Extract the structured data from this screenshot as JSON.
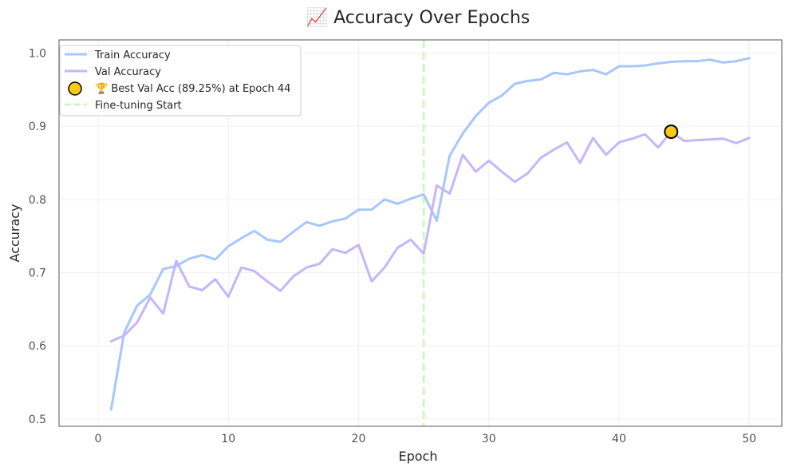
{
  "chart_data": {
    "type": "line",
    "title": "📈 Accuracy Over Epochs",
    "xlabel": "Epoch",
    "ylabel": "Accuracy",
    "xlim": [
      -3,
      52.5
    ],
    "ylim": [
      0.49,
      1.018
    ],
    "xticks": [
      0,
      10,
      20,
      30,
      40,
      50
    ],
    "yticks": [
      0.5,
      0.6,
      0.7,
      0.8,
      0.9,
      1.0
    ],
    "ytick_labels": [
      "0.5",
      "0.6",
      "0.7",
      "0.8",
      "0.9",
      "1.0"
    ],
    "grid": true,
    "legend_position": "top-left",
    "x": [
      1,
      2,
      3,
      4,
      5,
      6,
      7,
      8,
      9,
      10,
      11,
      12,
      13,
      14,
      15,
      16,
      17,
      18,
      19,
      20,
      21,
      22,
      23,
      24,
      25,
      26,
      27,
      28,
      29,
      30,
      31,
      32,
      33,
      34,
      35,
      36,
      37,
      38,
      39,
      40,
      41,
      42,
      43,
      44,
      45,
      46,
      47,
      48,
      49,
      50
    ],
    "series": [
      {
        "name": "Train Accuracy",
        "color": "#a7c7fa",
        "values": [
          0.513,
          0.618,
          0.655,
          0.67,
          0.705,
          0.709,
          0.719,
          0.724,
          0.718,
          0.736,
          0.747,
          0.757,
          0.745,
          0.742,
          0.756,
          0.769,
          0.764,
          0.77,
          0.774,
          0.786,
          0.786,
          0.8,
          0.794,
          0.801,
          0.807,
          0.771,
          0.86,
          0.89,
          0.914,
          0.932,
          0.942,
          0.958,
          0.962,
          0.964,
          0.973,
          0.971,
          0.975,
          0.977,
          0.971,
          0.982,
          0.982,
          0.983,
          0.986,
          0.988,
          0.989,
          0.989,
          0.991,
          0.987,
          0.989,
          0.993
        ]
      },
      {
        "name": "Val Accuracy",
        "color": "#c5b6fb",
        "values": [
          0.606,
          0.614,
          0.632,
          0.666,
          0.644,
          0.716,
          0.681,
          0.676,
          0.691,
          0.667,
          0.707,
          0.702,
          0.688,
          0.675,
          0.695,
          0.707,
          0.712,
          0.732,
          0.727,
          0.738,
          0.688,
          0.707,
          0.734,
          0.745,
          0.726,
          0.819,
          0.808,
          0.861,
          0.838,
          0.853,
          0.838,
          0.824,
          0.836,
          0.857,
          0.868,
          0.878,
          0.85,
          0.884,
          0.861,
          0.878,
          0.883,
          0.889,
          0.871,
          0.8925,
          0.88,
          0.881,
          0.882,
          0.883,
          0.877,
          0.884
        ]
      }
    ],
    "best_marker": {
      "label": "🏆 Best Val Acc (89.25%) at Epoch 44",
      "epoch": 44,
      "value": 0.8925,
      "fill": "#f7cb15",
      "edge": "#000000"
    },
    "vline": {
      "label": "Fine-tuning Start",
      "x": 25,
      "color": "#ccf7c2"
    }
  }
}
